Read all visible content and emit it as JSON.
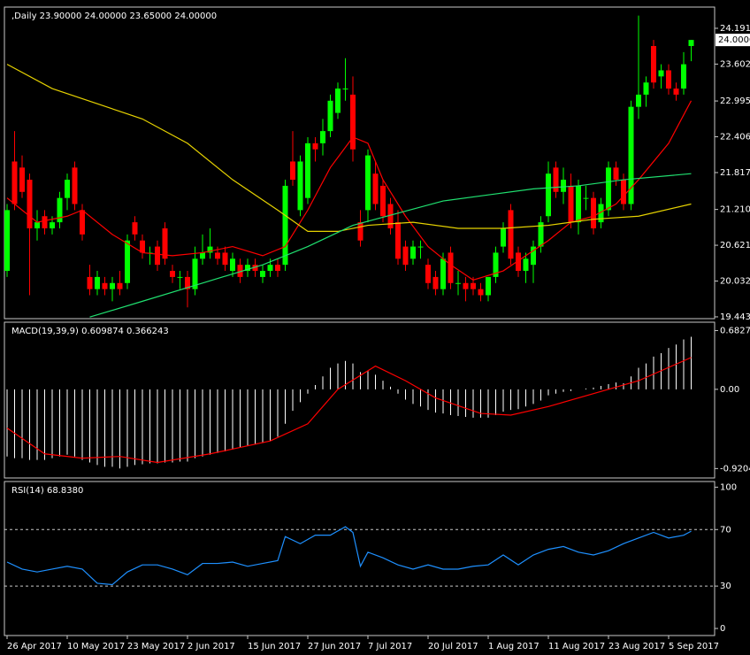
{
  "chart_data": [
    {
      "type": "candlestick",
      "title": ",Daily  23.90000 24.00000 23.65000 24.00000",
      "categories": [
        "26 Apr 2017",
        null,
        null,
        null,
        null,
        null,
        null,
        null,
        "10 May 2017",
        null,
        null,
        null,
        null,
        null,
        null,
        null,
        "23 May 2017",
        null,
        null,
        null,
        null,
        null,
        null,
        null,
        "2 Jun 2017",
        null,
        null,
        null,
        null,
        null,
        null,
        null,
        "15 Jun 2017",
        null,
        null,
        null,
        null,
        null,
        null,
        null,
        "27 Jun 2017",
        null,
        null,
        null,
        null,
        null,
        null,
        null,
        "7 Jul 2017",
        null,
        null,
        null,
        null,
        null,
        null,
        null,
        "20 Jul 2017",
        null,
        null,
        null,
        null,
        null,
        null,
        null,
        "1 Aug 2017",
        null,
        null,
        null,
        null,
        null,
        null,
        null,
        "11 Aug 2017",
        null,
        null,
        null,
        null,
        null,
        null,
        null,
        "23 Aug 2017",
        null,
        null,
        null,
        null,
        null,
        null,
        null,
        "5 Sep 2017",
        null,
        null,
        null
      ],
      "open": [
        20.2,
        22.0,
        21.9,
        21.7,
        20.9,
        21.1,
        20.9,
        21.0,
        21.4,
        21.9,
        21.2,
        20.1,
        19.9,
        20.0,
        19.9,
        20.0,
        20.0,
        21.0,
        20.7,
        20.5,
        20.6,
        20.9,
        20.2,
        20.1,
        20.1,
        19.9,
        20.4,
        20.5,
        20.5,
        20.5,
        20.2,
        20.3,
        20.2,
        20.3,
        20.1,
        20.2,
        20.3,
        20.3,
        22.0,
        21.2,
        21.4,
        22.3,
        22.3,
        22.5,
        22.8,
        23.2,
        23.1,
        21.0,
        21.2,
        21.8,
        21.6,
        21.3,
        21.0,
        20.6,
        20.4,
        20.6,
        20.3,
        20.1,
        19.9,
        20.5,
        20.0,
        20.0,
        20.0,
        19.9,
        19.8,
        20.1,
        20.6,
        21.2,
        20.5,
        20.2,
        20.3,
        20.6,
        21.1,
        21.9,
        21.5,
        21.6,
        21.0,
        21.4,
        21.4,
        21.0,
        21.2,
        21.9,
        21.7,
        21.3,
        22.9,
        23.1,
        23.9,
        23.4,
        23.5,
        23.2,
        23.2,
        23.9
      ],
      "high": [
        21.3,
        22.5,
        22.1,
        21.8,
        21.2,
        21.2,
        21.1,
        21.5,
        21.8,
        22.0,
        21.3,
        20.3,
        20.2,
        20.1,
        20.1,
        20.2,
        20.8,
        21.1,
        20.8,
        20.6,
        20.7,
        21.0,
        20.3,
        20.2,
        20.2,
        20.6,
        20.8,
        20.9,
        20.6,
        20.6,
        20.5,
        20.4,
        20.4,
        20.4,
        20.3,
        20.4,
        20.4,
        21.7,
        22.5,
        22.1,
        22.4,
        22.4,
        22.7,
        23.1,
        23.3,
        23.7,
        23.4,
        21.2,
        22.2,
        22.0,
        21.7,
        21.4,
        21.2,
        20.7,
        20.7,
        20.7,
        20.4,
        20.2,
        20.5,
        20.6,
        20.2,
        20.1,
        20.1,
        20.0,
        20.1,
        20.6,
        21.0,
        21.3,
        20.6,
        20.5,
        20.7,
        21.1,
        22.0,
        22.0,
        21.9,
        21.8,
        21.7,
        21.6,
        21.5,
        21.4,
        22.0,
        22.0,
        21.8,
        23.0,
        24.4,
        23.4,
        24.0,
        23.6,
        23.6,
        23.3,
        23.8,
        24.0
      ],
      "low": [
        20.1,
        21.2,
        21.4,
        19.8,
        20.7,
        20.8,
        20.8,
        20.9,
        21.2,
        21.2,
        20.7,
        19.8,
        19.8,
        19.8,
        19.7,
        19.8,
        19.9,
        20.7,
        20.4,
        20.3,
        20.2,
        20.3,
        20.0,
        19.9,
        19.6,
        19.8,
        20.3,
        20.4,
        20.3,
        20.2,
        20.1,
        20.0,
        20.1,
        20.1,
        20.0,
        20.1,
        20.1,
        20.2,
        21.6,
        21.1,
        21.3,
        22.0,
        22.1,
        22.4,
        22.7,
        23.0,
        22.0,
        20.6,
        21.0,
        21.2,
        21.0,
        20.8,
        20.3,
        20.2,
        20.3,
        20.4,
        19.9,
        19.8,
        19.8,
        19.9,
        19.8,
        19.7,
        19.8,
        19.7,
        19.7,
        20.0,
        20.5,
        20.3,
        20.1,
        20.0,
        20.0,
        20.5,
        21.0,
        21.4,
        21.3,
        20.9,
        20.8,
        21.2,
        20.8,
        20.9,
        21.1,
        21.6,
        21.2,
        21.2,
        22.7,
        22.9,
        23.2,
        23.2,
        23.1,
        23.0,
        23.1,
        23.65
      ],
      "close": [
        21.2,
        21.3,
        21.5,
        20.9,
        21.0,
        20.9,
        21.0,
        21.4,
        21.7,
        21.3,
        20.8,
        19.9,
        20.1,
        19.9,
        20.0,
        19.9,
        20.7,
        20.8,
        20.5,
        20.5,
        20.3,
        20.4,
        20.1,
        20.1,
        19.9,
        20.4,
        20.5,
        20.6,
        20.4,
        20.3,
        20.4,
        20.1,
        20.3,
        20.2,
        20.2,
        20.3,
        20.2,
        21.6,
        21.7,
        22.0,
        22.3,
        22.2,
        22.5,
        23.0,
        23.2,
        23.2,
        22.2,
        20.7,
        22.1,
        21.3,
        21.1,
        20.9,
        20.4,
        20.3,
        20.6,
        20.6,
        20.0,
        19.9,
        20.4,
        20.0,
        20.0,
        19.9,
        19.9,
        19.8,
        20.1,
        20.5,
        20.9,
        20.4,
        20.2,
        20.4,
        20.6,
        21.0,
        21.8,
        21.5,
        21.7,
        21.0,
        21.6,
        21.4,
        20.9,
        21.3,
        21.9,
        21.7,
        21.3,
        22.9,
        23.1,
        23.3,
        23.3,
        23.5,
        23.2,
        23.1,
        23.6,
        24.0
      ],
      "up_color": "#00ff00",
      "down_color": "#ff0000",
      "lines": [
        {
          "color": "#ff0000",
          "x": [
            0,
            4,
            8,
            10,
            14,
            18,
            22,
            26,
            30,
            34,
            37,
            40,
            43,
            46,
            48,
            50,
            53,
            56,
            59,
            62,
            66,
            69,
            72,
            75,
            78,
            81,
            84,
            88,
            91
          ],
          "values": [
            21.4,
            21.0,
            21.1,
            21.2,
            20.8,
            20.5,
            20.45,
            20.5,
            20.6,
            20.45,
            20.6,
            21.2,
            21.9,
            22.4,
            22.3,
            21.7,
            21.1,
            20.6,
            20.3,
            20.05,
            20.2,
            20.45,
            20.7,
            21.0,
            21.1,
            21.3,
            21.7,
            22.3,
            23.0
          ]
        },
        {
          "color": "#e6d200",
          "x": [
            0,
            6,
            12,
            18,
            24,
            30,
            36,
            40,
            44,
            48,
            54,
            60,
            66,
            72,
            78,
            84,
            91
          ],
          "values": [
            23.6,
            23.2,
            22.95,
            22.7,
            22.3,
            21.7,
            21.2,
            20.85,
            20.85,
            20.95,
            21.0,
            20.9,
            20.9,
            20.95,
            21.05,
            21.1,
            21.3
          ]
        },
        {
          "color": "#20e070",
          "x": [
            11,
            18,
            26,
            34,
            40,
            46,
            52,
            58,
            64,
            70,
            76,
            82,
            91
          ],
          "values": [
            19.44,
            19.7,
            20.0,
            20.3,
            20.6,
            20.95,
            21.15,
            21.35,
            21.45,
            21.55,
            21.6,
            21.7,
            21.8
          ]
        }
      ],
      "ylim": [
        19.414,
        24.541
      ],
      "yticks": [
        24.19185,
        {
          "value": 23.6028,
          "label": "23.60280"
        },
        {
          "value": 22.9959,
          "label": "22.99590"
        },
        22.40685,
        {
          "value": 21.8178,
          "label": "21.81780"
        },
        21.2109,
        20.62185,
        {
          "value": 20.0328,
          "label": "20.03280"
        },
        19.44375
      ],
      "price_label": {
        "value": 24,
        "label": "24.00000"
      }
    },
    {
      "type": "macd",
      "title": "MACD(19,39,9) 0.609874 0.366243",
      "values": [
        -0.78,
        -0.8,
        -0.8,
        -0.82,
        -0.82,
        -0.82,
        -0.8,
        -0.78,
        -0.76,
        -0.78,
        -0.82,
        -0.85,
        -0.88,
        -0.9,
        -0.9,
        -0.92,
        -0.9,
        -0.88,
        -0.87,
        -0.86,
        -0.86,
        -0.85,
        -0.85,
        -0.84,
        -0.84,
        -0.8,
        -0.78,
        -0.76,
        -0.74,
        -0.72,
        -0.7,
        -0.68,
        -0.66,
        -0.64,
        -0.62,
        -0.6,
        -0.55,
        -0.4,
        -0.25,
        -0.15,
        -0.05,
        0.05,
        0.15,
        0.25,
        0.3,
        0.33,
        0.3,
        0.2,
        0.22,
        0.17,
        0.1,
        0.03,
        -0.05,
        -0.12,
        -0.17,
        -0.2,
        -0.24,
        -0.27,
        -0.28,
        -0.3,
        -0.31,
        -0.32,
        -0.33,
        -0.33,
        -0.33,
        -0.3,
        -0.26,
        -0.24,
        -0.23,
        -0.2,
        -0.17,
        -0.13,
        -0.07,
        -0.05,
        -0.03,
        -0.02,
        0,
        0.01,
        0.02,
        0.04,
        0.06,
        0.08,
        0.07,
        0.15,
        0.25,
        0.3,
        0.38,
        0.42,
        0.48,
        0.52,
        0.58,
        0.61
      ],
      "color": "#ffffff",
      "signal": {
        "color": "#ff0000",
        "x": [
          0,
          5,
          10,
          15,
          20,
          27,
          35,
          40,
          44,
          49,
          53,
          57,
          63,
          67,
          72,
          78,
          84,
          91
        ],
        "values": [
          -0.45,
          -0.75,
          -0.8,
          -0.78,
          -0.85,
          -0.75,
          -0.6,
          -0.4,
          0.0,
          0.27,
          0.1,
          -0.1,
          -0.28,
          -0.3,
          -0.2,
          -0.05,
          0.1,
          0.37
        ]
      },
      "ylim": [
        -1.03,
        0.78
      ],
      "yticks": [
        0.682732,
        {
          "value": 0,
          "label": "0.00"
        },
        -0.920483
      ]
    },
    {
      "type": "line",
      "title": "RSI(14) 68.8380",
      "color": "#1e90ff",
      "x": [
        0,
        2,
        4,
        6,
        8,
        10,
        12,
        14,
        16,
        18,
        20,
        22,
        24,
        26,
        28,
        30,
        32,
        34,
        36,
        37,
        39,
        41,
        43,
        45,
        46,
        47,
        48,
        50,
        52,
        54,
        56,
        58,
        60,
        62,
        64,
        66,
        68,
        70,
        72,
        74,
        76,
        78,
        80,
        82,
        84,
        86,
        88,
        90,
        91
      ],
      "values": [
        47,
        42,
        40,
        42,
        44,
        42,
        32,
        31,
        40,
        45,
        45,
        42,
        38,
        46,
        46,
        47,
        44,
        46,
        48,
        65,
        60,
        66,
        66,
        72,
        68,
        44,
        54,
        50,
        45,
        42,
        45,
        42,
        42,
        44,
        45,
        52,
        45,
        52,
        56,
        58,
        54,
        52,
        55,
        60,
        64,
        68,
        64,
        66,
        68.838
      ],
      "ylim": [
        -5,
        104
      ],
      "yticks": [
        100,
        70,
        30,
        0
      ],
      "levels": [
        70,
        30
      ]
    }
  ]
}
